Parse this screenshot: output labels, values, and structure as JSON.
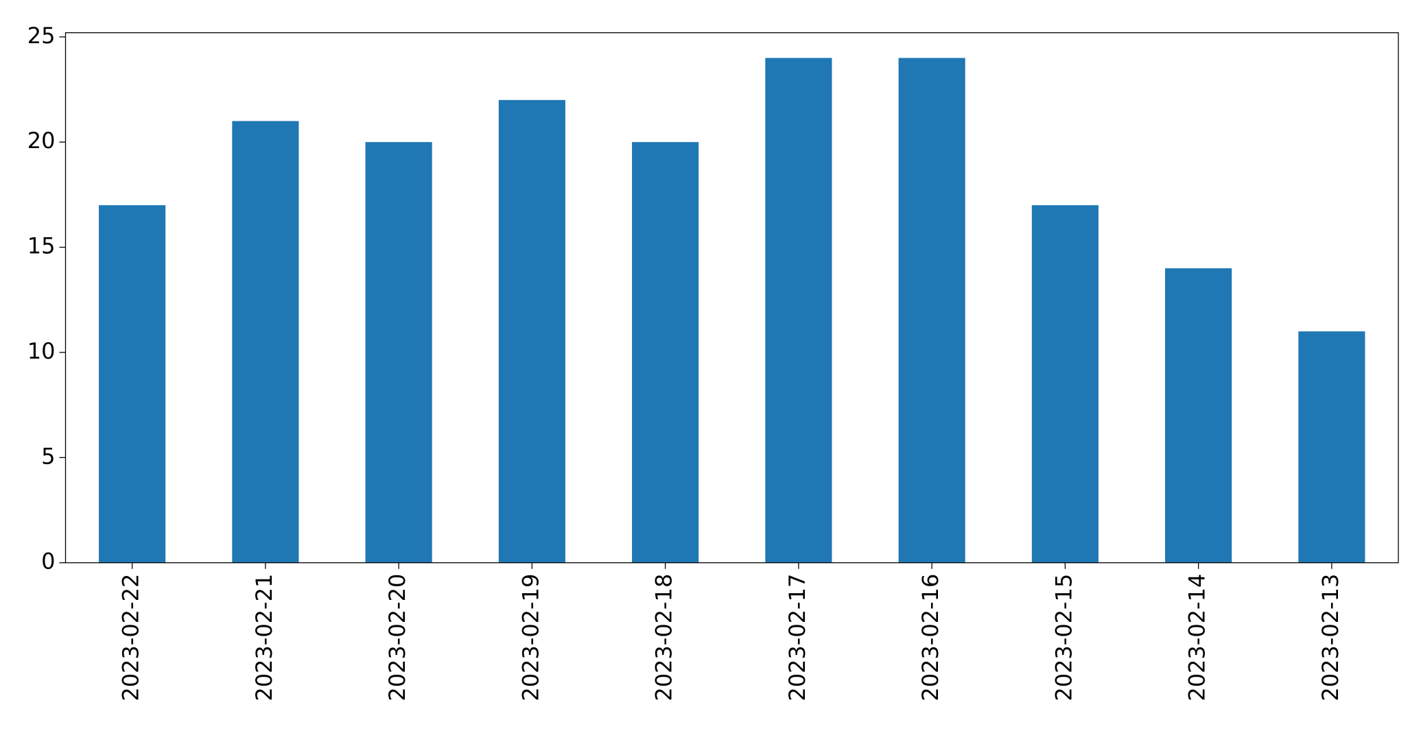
{
  "chart_data": {
    "type": "bar",
    "categories": [
      "2023-02-22",
      "2023-02-21",
      "2023-02-20",
      "2023-02-19",
      "2023-02-18",
      "2023-02-17",
      "2023-02-16",
      "2023-02-15",
      "2023-02-14",
      "2023-02-13"
    ],
    "values": [
      17,
      21,
      20,
      22,
      20,
      24,
      24,
      17,
      14,
      11
    ],
    "color": "#1f77b4",
    "ylim": [
      0,
      25.2
    ],
    "yticks": [
      0,
      5,
      10,
      15,
      20,
      25
    ],
    "grid": false
  }
}
